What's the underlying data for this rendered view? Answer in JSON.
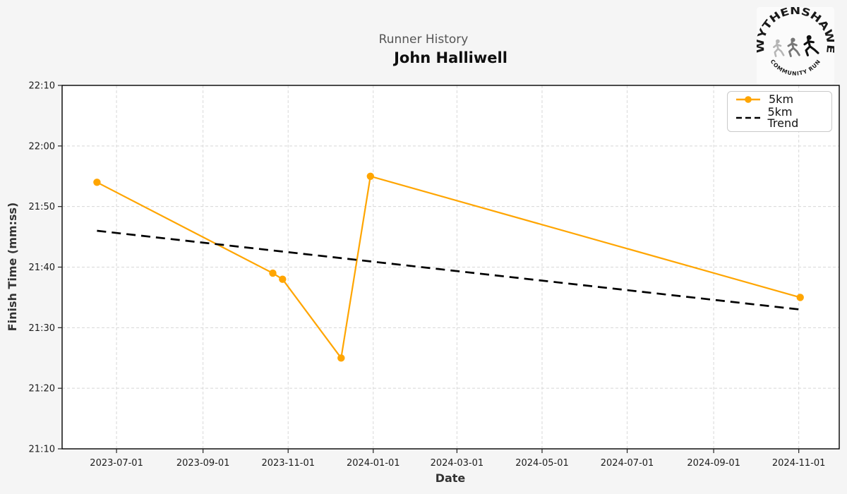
{
  "title_block": {
    "suptitle": "Runner History",
    "title": "John Halliwell"
  },
  "logo": {
    "top_text": "WYTHENSHAWE",
    "bottom_text": "COMMUNITY RUN",
    "runner_icons": [
      "runner-walking",
      "runner-jogging",
      "runner-sprinting"
    ]
  },
  "chart_data": {
    "type": "line",
    "title": "John Halliwell",
    "suptitle": "Runner History",
    "xlabel": "Date",
    "ylabel": "Finish Time (mm:ss)",
    "grid": true,
    "legend_position": "upper right",
    "x_ticks": [
      "2023-07-01",
      "2023-09-01",
      "2023-11-01",
      "2024-01-01",
      "2024-03-01",
      "2024-05-01",
      "2024-07-01",
      "2024-09-01",
      "2024-11-01"
    ],
    "y_ticks": [
      "21:10",
      "21:20",
      "21:30",
      "21:40",
      "21:50",
      "22:00",
      "22:10"
    ],
    "x_domain": [
      "2023-05-23",
      "2024-11-30"
    ],
    "y_domain": [
      "21:10",
      "22:10"
    ],
    "colors": {
      "series_5km": "#FFA500",
      "trend": "#000000",
      "grid": "#d8d8d8"
    },
    "series": [
      {
        "name": "5km",
        "color": "#FFA500",
        "line_style": "solid",
        "markers": true,
        "points": [
          [
            "2023-06-17",
            "21:54"
          ],
          [
            "2023-10-21",
            "21:39"
          ],
          [
            "2023-10-28",
            "21:38"
          ],
          [
            "2023-12-09",
            "21:25"
          ],
          [
            "2023-12-30",
            "21:55"
          ],
          [
            "2024-11-02",
            "21:35"
          ]
        ]
      },
      {
        "name": "5km Trend",
        "color": "#000000",
        "line_style": "dashed",
        "markers": false,
        "points": [
          [
            "2023-06-17",
            "21:46"
          ],
          [
            "2024-11-02",
            "21:33"
          ]
        ]
      }
    ]
  }
}
